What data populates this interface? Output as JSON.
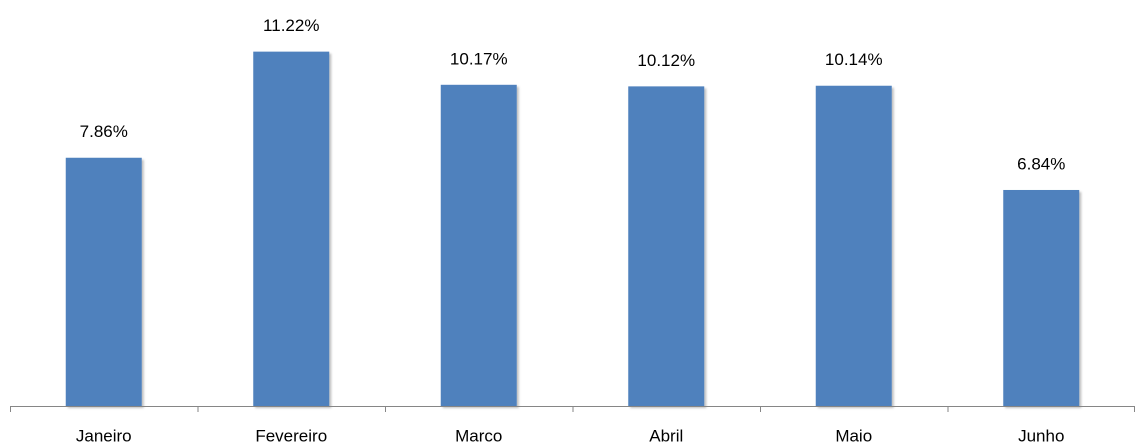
{
  "chart_data": {
    "type": "bar",
    "categories": [
      "Janeiro",
      "Fevereiro",
      "Marco",
      "Abril",
      "Maio",
      "Junho"
    ],
    "values": [
      7.86,
      11.22,
      10.17,
      10.12,
      10.14,
      6.84
    ],
    "value_labels": [
      "7.86%",
      "11.22%",
      "10.17%",
      "10.12%",
      "10.14%",
      "6.84%"
    ],
    "color": "#4f81bd",
    "ylim": [
      0,
      12
    ]
  }
}
